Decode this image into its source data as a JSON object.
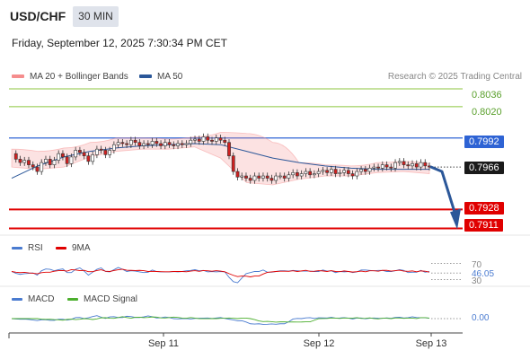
{
  "header": {
    "symbol": "USD/CHF",
    "timeframe": "30 MIN",
    "datetime": "Friday, September 12, 2025 7:30:34 PM CET"
  },
  "legend": {
    "bb_label": "MA 20 + Bollinger Bands",
    "ma50_label": "MA 50",
    "credit": "Research © 2025 Trading Central"
  },
  "colors": {
    "bollinger": "#f58d8d",
    "ma50": "#2b5799",
    "resistance": "#8cc63f",
    "pivot": "#2e63d4",
    "support": "#e00000",
    "rsi": "#4a7bd0",
    "rsi_ma": "#e00000",
    "macd": "#4a7bd0",
    "macd_signal": "#4caf2e"
  },
  "levels": {
    "r2": "0.8036",
    "r1": "0.8020",
    "pivot": "0.7992",
    "last": "0.7966",
    "s1": "0.7928",
    "s2": "0.7911"
  },
  "rsi_panel": {
    "rsi_label": "RSI",
    "ma_label": "9MA",
    "upper": "70",
    "value": "46.05",
    "lower": "30"
  },
  "macd_panel": {
    "macd_label": "MACD",
    "signal_label": "MACD Signal",
    "value": "0.00"
  },
  "x_axis": {
    "ticks": [
      "Sep 11",
      "Sep 12",
      "Sep 13"
    ]
  },
  "chart_data": {
    "type": "candlestick",
    "instrument": "USD/CHF",
    "interval": "30 MIN",
    "price_levels": [
      0.8036,
      0.802,
      0.7992,
      0.7966,
      0.7928,
      0.7911
    ],
    "last_price": 0.7966,
    "ylim": [
      0.7905,
      0.804
    ],
    "x_ticks": [
      "Sep 11",
      "Sep 12",
      "Sep 13"
    ],
    "price_path": [
      0.7978,
      0.7973,
      0.797,
      0.7972,
      0.7968,
      0.7966,
      0.7962,
      0.797,
      0.7973,
      0.7968,
      0.7972,
      0.7978,
      0.7975,
      0.7969,
      0.7975,
      0.7981,
      0.7979,
      0.7976,
      0.7971,
      0.7977,
      0.7982,
      0.7981,
      0.7977,
      0.7981,
      0.7986,
      0.7988,
      0.7987,
      0.7986,
      0.799,
      0.7988,
      0.7985,
      0.7987,
      0.7986,
      0.7989,
      0.7987,
      0.7985,
      0.7988,
      0.7986,
      0.7985,
      0.7987,
      0.7986,
      0.7987,
      0.799,
      0.7991,
      0.7989,
      0.7993,
      0.799,
      0.7989,
      0.7992,
      0.799,
      0.7988,
      0.7976,
      0.7962,
      0.7957,
      0.7958,
      0.7956,
      0.7954,
      0.7958,
      0.7956,
      0.7958,
      0.7956,
      0.7954,
      0.7958,
      0.7958,
      0.7956,
      0.7959,
      0.7961,
      0.7958,
      0.796,
      0.7962,
      0.7959,
      0.796,
      0.7962,
      0.7963,
      0.7961,
      0.7964,
      0.796,
      0.7961,
      0.7963,
      0.796,
      0.7958,
      0.7962,
      0.7964,
      0.7962,
      0.7965,
      0.7966,
      0.7965,
      0.7968,
      0.7966,
      0.7965,
      0.797,
      0.7971,
      0.7968,
      0.7967,
      0.7969,
      0.7966,
      0.797,
      0.7967,
      0.7966
    ],
    "ma50": [
      0.7956,
      0.7967,
      0.7975,
      0.798,
      0.7983,
      0.7985,
      0.7986,
      0.7987,
      0.7986,
      0.798,
      0.7974,
      0.797,
      0.7967,
      0.7965,
      0.7964,
      0.7964,
      0.7964
    ],
    "bb_upper": [
      0.7982,
      0.798,
      0.7983,
      0.7988,
      0.7992,
      0.7992,
      0.7991,
      0.7993,
      0.7997,
      0.7996,
      0.7988,
      0.797,
      0.7968,
      0.7967,
      0.797,
      0.7971,
      0.7969
    ],
    "bb_lower": [
      0.7966,
      0.7964,
      0.7966,
      0.7975,
      0.798,
      0.7982,
      0.7982,
      0.7984,
      0.7974,
      0.7952,
      0.795,
      0.7955,
      0.7958,
      0.7958,
      0.7961,
      0.7962,
      0.796
    ],
    "rsi_value": 46.05,
    "rsi_bounds": [
      30,
      70
    ],
    "macd_value": 0.0
  }
}
